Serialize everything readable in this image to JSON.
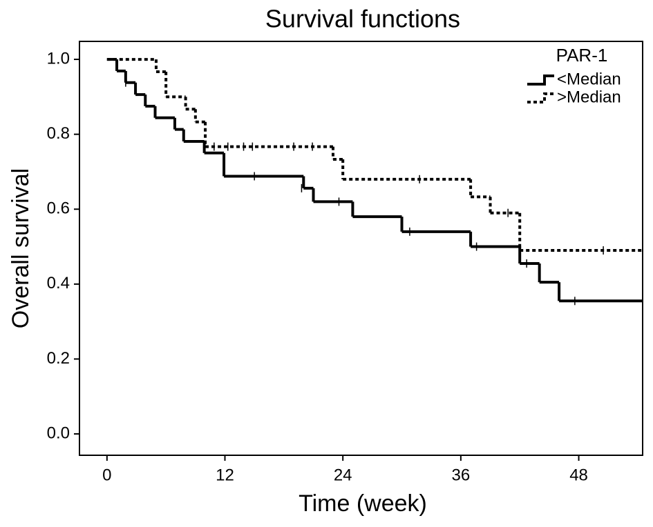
{
  "chart_data": {
    "type": "step",
    "title": "Survival functions",
    "x_label": "Time (week)",
    "y_label": "Overall survival",
    "legend_title": "PAR-1",
    "legend_position": "upper right",
    "xlim": [
      -2.8,
      54.5
    ],
    "ylim": [
      -0.057,
      1.048
    ],
    "xticks": [
      0,
      12,
      24,
      36,
      48
    ],
    "yticks": [
      {
        "value": 0,
        "label": "0.0"
      },
      0.2,
      0.4,
      0.6,
      0.8,
      {
        "value": 1,
        "label": "1.0"
      }
    ],
    "series": [
      {
        "name": "<Median",
        "color": "#000000",
        "line_style": "solid",
        "x": [
          0,
          1,
          1.9,
          2.9,
          3.9,
          4.9,
          6.9,
          7.8,
          9.9,
          11.9,
          20,
          21,
          25,
          30,
          37,
          42,
          44,
          46
        ],
        "values": [
          1.0,
          0.969,
          0.938,
          0.906,
          0.875,
          0.844,
          0.813,
          0.781,
          0.75,
          0.688,
          0.656,
          0.62,
          0.58,
          0.54,
          0.5,
          0.455,
          0.405,
          0.355
        ],
        "censored": {
          "x": [
            1.9,
            15,
            19.8,
            23.6,
            30.8,
            37.6,
            42.7,
            47.6
          ],
          "values": [
            0.938,
            0.688,
            0.656,
            0.62,
            0.54,
            0.5,
            0.455,
            0.355
          ]
        }
      },
      {
        "name": ">Median",
        "color": "#000000",
        "line_style": "dotted",
        "x": [
          0,
          5,
          6,
          8,
          9,
          10,
          23,
          24,
          37,
          39,
          42
        ],
        "values": [
          1.0,
          0.967,
          0.9,
          0.867,
          0.833,
          0.767,
          0.733,
          0.68,
          0.633,
          0.59,
          0.49
        ],
        "censored": {
          "x": [
            10.9,
            12.3,
            13.9,
            14.8,
            19,
            20.9,
            31.8,
            40.8,
            50.5
          ],
          "values": [
            0.767,
            0.767,
            0.767,
            0.767,
            0.767,
            0.767,
            0.68,
            0.59,
            0.49
          ]
        }
      }
    ]
  }
}
